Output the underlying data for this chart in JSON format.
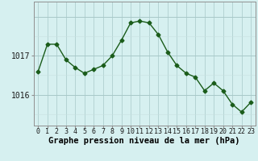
{
  "hours": [
    0,
    1,
    2,
    3,
    4,
    5,
    6,
    7,
    8,
    9,
    10,
    11,
    12,
    13,
    14,
    15,
    16,
    17,
    18,
    19,
    20,
    21,
    22,
    23
  ],
  "values": [
    1016.6,
    1017.3,
    1017.3,
    1016.9,
    1016.7,
    1016.55,
    1016.65,
    1016.75,
    1017.0,
    1017.4,
    1017.85,
    1017.9,
    1017.85,
    1017.55,
    1017.1,
    1016.75,
    1016.55,
    1016.45,
    1016.1,
    1016.3,
    1016.1,
    1015.75,
    1015.55,
    1015.8
  ],
  "line_color": "#1a5c1a",
  "marker": "D",
  "marker_size": 2.5,
  "bg_color": "#d6f0f0",
  "grid_color_major": "#a8c8c8",
  "grid_color_minor": "#c8e0e0",
  "ylabel_ticks": [
    1016,
    1017
  ],
  "ylim": [
    1015.2,
    1018.4
  ],
  "xlim": [
    -0.5,
    23.5
  ],
  "xlabel": "Graphe pression niveau de la mer (hPa)",
  "xlabel_fontsize": 7.5,
  "tick_fontsize": 6,
  "title": ""
}
